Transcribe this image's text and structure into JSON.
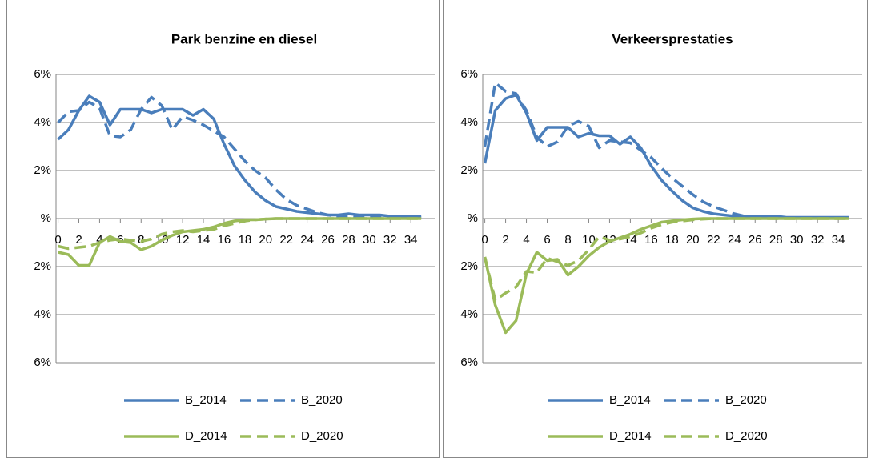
{
  "chart_data": [
    {
      "type": "line",
      "title": "Park benzine en diesel",
      "x": [
        0,
        1,
        2,
        3,
        4,
        5,
        6,
        7,
        8,
        9,
        10,
        11,
        12,
        13,
        14,
        15,
        16,
        17,
        18,
        19,
        20,
        21,
        22,
        23,
        24,
        25,
        26,
        27,
        28,
        29,
        30,
        31,
        32,
        33,
        34,
        35
      ],
      "xlim": [
        -0.2,
        36.3
      ],
      "xticks": [
        0,
        2,
        4,
        6,
        8,
        10,
        12,
        14,
        16,
        18,
        20,
        22,
        24,
        26,
        28,
        30,
        32,
        34
      ],
      "ylim": [
        -6,
        6
      ],
      "yticks": [
        {
          "value": 6,
          "label": "6%"
        },
        {
          "value": 4,
          "label": "4%"
        },
        {
          "value": 2,
          "label": "2%"
        },
        {
          "value": 0,
          "label": "%"
        },
        {
          "value": -2,
          "label": "2%"
        },
        {
          "value": -4,
          "label": "4%"
        },
        {
          "value": -6,
          "label": "6%"
        }
      ],
      "grid": true,
      "legend": "bottom",
      "series": [
        {
          "name": "B_2014",
          "color": "#4a7ebb",
          "style": "solid",
          "values": [
            3.3,
            3.7,
            4.5,
            5.1,
            4.85,
            3.9,
            4.55,
            4.55,
            4.55,
            4.4,
            4.55,
            4.55,
            4.55,
            4.3,
            4.55,
            4.15,
            3.1,
            2.2,
            1.6,
            1.1,
            0.75,
            0.5,
            0.4,
            0.3,
            0.25,
            0.2,
            0.15,
            0.15,
            0.2,
            0.15,
            0.15,
            0.15,
            0.1,
            0.1,
            0.1,
            0.1
          ]
        },
        {
          "name": "B_2020",
          "color": "#4a7ebb",
          "style": "dashed",
          "values": [
            4.0,
            4.45,
            4.5,
            4.85,
            4.6,
            3.45,
            3.4,
            3.7,
            4.55,
            5.05,
            4.7,
            3.7,
            4.25,
            4.1,
            3.9,
            3.65,
            3.4,
            2.9,
            2.4,
            2.0,
            1.7,
            1.2,
            0.8,
            0.55,
            0.4,
            0.25,
            0.15,
            0.1,
            0.1,
            0.05,
            0.05,
            0.05,
            0.05,
            0.05,
            0.05,
            0.05
          ]
        },
        {
          "name": "D_2014",
          "color": "#9bbb59",
          "style": "solid",
          "values": [
            -1.4,
            -1.5,
            -1.95,
            -1.95,
            -1.0,
            -0.75,
            -0.95,
            -1.0,
            -1.3,
            -1.15,
            -0.9,
            -0.7,
            -0.55,
            -0.5,
            -0.45,
            -0.35,
            -0.2,
            -0.1,
            -0.05,
            -0.05,
            -0.02,
            0,
            0,
            0,
            0,
            0,
            0,
            0,
            0,
            0,
            0,
            0,
            0,
            0,
            0,
            0
          ]
        },
        {
          "name": "D_2020",
          "color": "#9bbb59",
          "style": "dashed",
          "values": [
            -1.15,
            -1.25,
            -1.2,
            -1.15,
            -1.0,
            -0.9,
            -0.85,
            -0.9,
            -0.95,
            -0.85,
            -0.65,
            -0.55,
            -0.5,
            -0.55,
            -0.5,
            -0.45,
            -0.3,
            -0.2,
            -0.1,
            -0.05,
            -0.02,
            0,
            0,
            0,
            0,
            0,
            0,
            0,
            0,
            0,
            0,
            0,
            0,
            0,
            0,
            0
          ]
        }
      ]
    },
    {
      "type": "line",
      "title": "Verkeersprestaties",
      "x": [
        0,
        1,
        2,
        3,
        4,
        5,
        6,
        7,
        8,
        9,
        10,
        11,
        12,
        13,
        14,
        15,
        16,
        17,
        18,
        19,
        20,
        21,
        22,
        23,
        24,
        25,
        26,
        27,
        28,
        29,
        30,
        31,
        32,
        33,
        34,
        35
      ],
      "xlim": [
        -0.2,
        36.3
      ],
      "xticks": [
        0,
        2,
        4,
        6,
        8,
        10,
        12,
        14,
        16,
        18,
        20,
        22,
        24,
        26,
        28,
        30,
        32,
        34
      ],
      "ylim": [
        -6,
        6
      ],
      "yticks": [
        {
          "value": 6,
          "label": "6%"
        },
        {
          "value": 4,
          "label": "4%"
        },
        {
          "value": 2,
          "label": "2%"
        },
        {
          "value": 0,
          "label": "%"
        },
        {
          "value": -2,
          "label": "2%"
        },
        {
          "value": -4,
          "label": "4%"
        },
        {
          "value": -6,
          "label": "6%"
        }
      ],
      "grid": true,
      "legend": "bottom",
      "series": [
        {
          "name": "B_2014",
          "color": "#4a7ebb",
          "style": "solid",
          "values": [
            2.3,
            4.5,
            5.0,
            5.15,
            4.4,
            3.25,
            3.8,
            3.8,
            3.8,
            3.4,
            3.55,
            3.45,
            3.45,
            3.1,
            3.4,
            2.95,
            2.2,
            1.6,
            1.15,
            0.75,
            0.45,
            0.3,
            0.2,
            0.15,
            0.1,
            0.1,
            0.1,
            0.1,
            0.1,
            0.05,
            0.05,
            0.05,
            0.05,
            0.05,
            0.05,
            0.05
          ]
        },
        {
          "name": "B_2020",
          "color": "#4a7ebb",
          "style": "dashed",
          "values": [
            3.0,
            5.65,
            5.3,
            5.2,
            4.5,
            3.4,
            3.0,
            3.2,
            3.85,
            4.05,
            3.85,
            2.95,
            3.25,
            3.2,
            3.15,
            2.85,
            2.55,
            2.1,
            1.7,
            1.35,
            1.0,
            0.7,
            0.5,
            0.35,
            0.2,
            0.1,
            0.05,
            0.05,
            0.05,
            0.02,
            0.02,
            0.02,
            0.02,
            0.02,
            0.02,
            0.02
          ]
        },
        {
          "name": "D_2014",
          "color": "#9bbb59",
          "style": "solid",
          "values": [
            -1.6,
            -3.6,
            -4.75,
            -4.25,
            -2.3,
            -1.4,
            -1.75,
            -1.7,
            -2.35,
            -2.0,
            -1.55,
            -1.2,
            -0.95,
            -0.8,
            -0.65,
            -0.45,
            -0.3,
            -0.15,
            -0.1,
            -0.05,
            -0.02,
            0,
            0,
            0,
            0,
            0,
            0,
            0,
            0,
            0,
            0,
            0,
            0,
            0,
            0,
            0
          ]
        },
        {
          "name": "D_2020",
          "color": "#9bbb59",
          "style": "dashed",
          "values": [
            -1.6,
            -3.4,
            -3.1,
            -2.85,
            -2.2,
            -2.25,
            -1.65,
            -1.8,
            -1.95,
            -1.75,
            -1.3,
            -0.75,
            -0.9,
            -0.85,
            -0.75,
            -0.6,
            -0.4,
            -0.25,
            -0.15,
            -0.1,
            -0.05,
            -0.02,
            0,
            0,
            0,
            0,
            0,
            0,
            0,
            0,
            0,
            0,
            0,
            0,
            0,
            0
          ]
        }
      ]
    }
  ]
}
